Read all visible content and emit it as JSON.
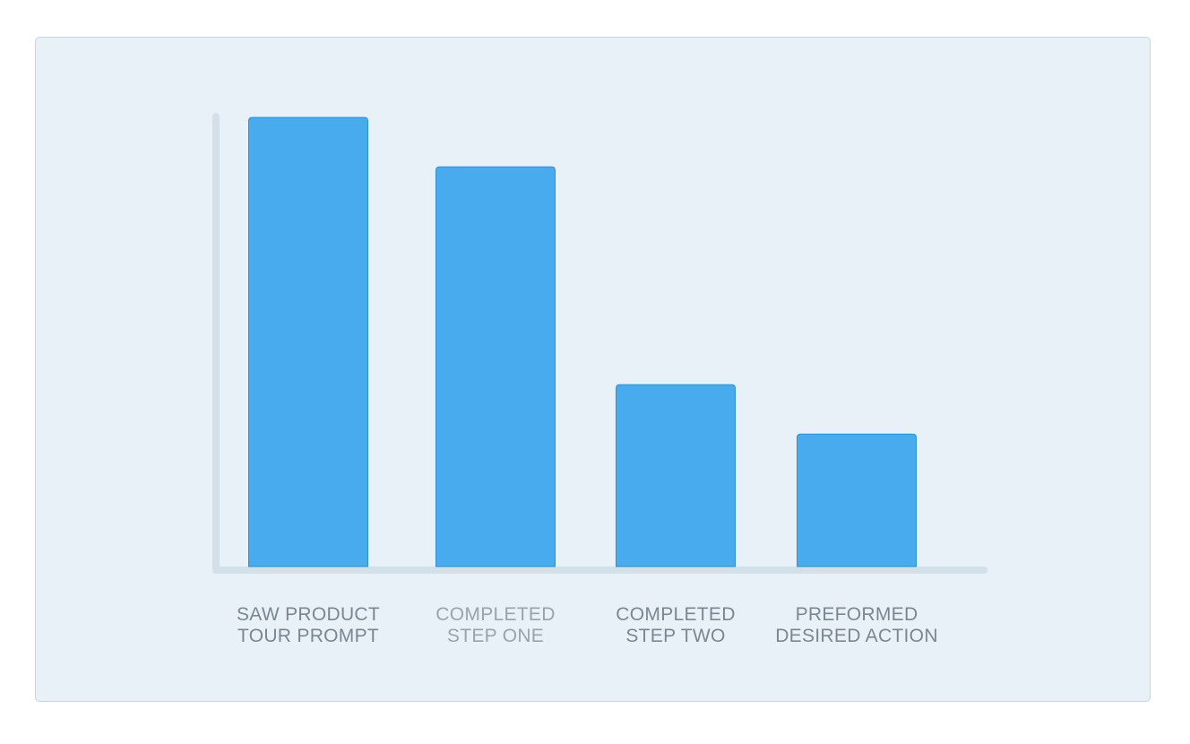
{
  "chart_data": {
    "type": "bar",
    "categories": [
      [
        "SAW PRODUCT",
        "TOUR PROMPT"
      ],
      [
        "COMPLETED",
        "STEP ONE"
      ],
      [
        "COMPLETED",
        "STEP TWO"
      ],
      [
        "PREFORMED",
        "DESIRED ACTION"
      ]
    ],
    "values": [
      100,
      89,
      40.5,
      29.5
    ],
    "ylim": [
      0,
      100
    ],
    "grid": false,
    "legend": "none",
    "colors": {
      "bar_fill": "#47abed",
      "bar_stroke": "#2f8fcf",
      "axis": "#d2e0ea",
      "label": "#7b8790",
      "label_muted": "#9aa3aa",
      "card_bg": "#e8f1f8"
    },
    "label_colors": [
      "#7b8790",
      "#9aa3aa",
      "#7b8790",
      "#7b8790"
    ]
  }
}
